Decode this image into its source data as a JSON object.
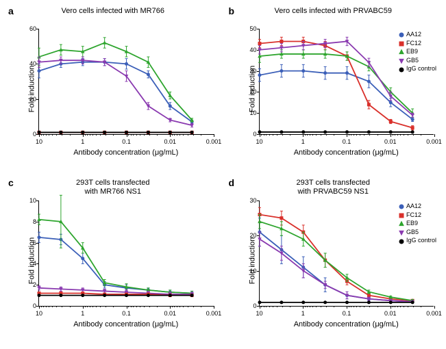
{
  "panels": {
    "a": {
      "label": "a",
      "title": "Vero cells infected with MR766",
      "ylabel": "Fold induction",
      "xlabel": "Antibody concentration (μg/mL)",
      "ylim": [
        0,
        60
      ],
      "ytick_step": 20,
      "xticks": [
        10,
        1,
        0.1,
        0.01,
        0.001
      ],
      "x_range_log": [
        1,
        -3
      ],
      "series": [
        {
          "name": "AA12",
          "color": "#3b5fb8",
          "marker": "circle",
          "x": [
            10,
            3.16,
            1,
            0.316,
            0.1,
            0.0316,
            0.01,
            0.00316
          ],
          "y": [
            36,
            40,
            41,
            41,
            40,
            34,
            16,
            7
          ],
          "err": [
            4,
            2,
            2,
            2,
            3,
            2,
            2,
            1
          ]
        },
        {
          "name": "EB9",
          "color": "#2ea52e",
          "marker": "triangle",
          "x": [
            10,
            3.16,
            1,
            0.316,
            0.1,
            0.0316,
            0.01,
            0.00316
          ],
          "y": [
            44,
            48,
            47,
            52,
            47,
            41,
            22,
            8
          ],
          "err": [
            5,
            3,
            3,
            3,
            3,
            3,
            2,
            1
          ]
        },
        {
          "name": "GB5",
          "color": "#8a3ab0",
          "marker": "invtriangle",
          "x": [
            10,
            3.16,
            1,
            0.316,
            0.1,
            0.0316,
            0.01,
            0.00316
          ],
          "y": [
            41,
            42,
            42,
            41,
            33,
            16,
            8,
            5
          ],
          "err": [
            3,
            2,
            2,
            2,
            3,
            2,
            1,
            1
          ]
        },
        {
          "name": "FC12",
          "color": "#d9302b",
          "marker": "square",
          "x": [
            10,
            3.16,
            1,
            0.316,
            0.1,
            0.0316,
            0.01,
            0.00316
          ],
          "y": [
            1,
            1,
            1,
            1,
            1,
            1,
            1,
            1
          ],
          "err": [
            0.5,
            0.5,
            0.5,
            0.5,
            0.5,
            0.5,
            0.5,
            0.5
          ]
        },
        {
          "name": "IgG control",
          "color": "#000000",
          "marker": "circle",
          "x": [
            10,
            3.16,
            1,
            0.316,
            0.1,
            0.0316,
            0.01,
            0.00316
          ],
          "y": [
            1,
            1,
            1,
            1,
            1,
            1,
            1,
            1
          ],
          "err": [
            0,
            0,
            0,
            0,
            0,
            0,
            0,
            0
          ]
        }
      ],
      "show_legend": false
    },
    "b": {
      "label": "b",
      "title": "Vero cells infected with PRVABC59",
      "ylabel": "Fold induction",
      "xlabel": "Antibody concentration (μg/mL)",
      "ylim": [
        0,
        50
      ],
      "ytick_step": 10,
      "xticks": [
        10,
        1,
        0.1,
        0.01,
        0.001
      ],
      "x_range_log": [
        1,
        -3
      ],
      "series": [
        {
          "name": "AA12",
          "color": "#3b5fb8",
          "marker": "circle",
          "x": [
            10,
            3.16,
            1,
            0.316,
            0.1,
            0.0316,
            0.01,
            0.00316
          ],
          "y": [
            28,
            30,
            30,
            29,
            29,
            25,
            15,
            7
          ],
          "err": [
            3,
            3,
            3,
            3,
            3,
            3,
            2,
            1
          ]
        },
        {
          "name": "FC12",
          "color": "#d9302b",
          "marker": "square",
          "x": [
            10,
            3.16,
            1,
            0.316,
            0.1,
            0.0316,
            0.01,
            0.00316
          ],
          "y": [
            43,
            44,
            44,
            42,
            37,
            14,
            6,
            3
          ],
          "err": [
            2,
            2,
            2,
            2,
            2,
            2,
            1,
            1
          ]
        },
        {
          "name": "EB9",
          "color": "#2ea52e",
          "marker": "triangle",
          "x": [
            10,
            3.16,
            1,
            0.316,
            0.1,
            0.0316,
            0.01,
            0.00316
          ],
          "y": [
            37,
            38,
            38,
            38,
            37,
            32,
            20,
            10
          ],
          "err": [
            3,
            2,
            2,
            2,
            2,
            2,
            2,
            2
          ]
        },
        {
          "name": "GB5",
          "color": "#8a3ab0",
          "marker": "invtriangle",
          "x": [
            10,
            3.16,
            1,
            0.316,
            0.1,
            0.0316,
            0.01,
            0.00316
          ],
          "y": [
            40,
            41,
            42,
            43,
            44,
            34,
            18,
            9
          ],
          "err": [
            2,
            2,
            2,
            2,
            2,
            2,
            2,
            1
          ]
        },
        {
          "name": "IgG control",
          "color": "#000000",
          "marker": "circle",
          "x": [
            10,
            3.16,
            1,
            0.316,
            0.1,
            0.0316,
            0.01,
            0.00316
          ],
          "y": [
            1,
            1,
            1,
            1,
            1,
            1,
            1,
            1
          ],
          "err": [
            0,
            0,
            0,
            0,
            0,
            0,
            0,
            0
          ]
        }
      ],
      "show_legend": true
    },
    "c": {
      "label": "c",
      "title": "293T cells transfected\nwith MR766 NS1",
      "ylabel": "Fold induction",
      "xlabel": "Antibody concentration (μg/mL)",
      "ylim": [
        0,
        10
      ],
      "ytick_step": 2,
      "xticks": [
        10,
        1,
        0.1,
        0.01,
        0.001
      ],
      "x_range_log": [
        1,
        -3
      ],
      "series": [
        {
          "name": "AA12",
          "color": "#3b5fb8",
          "marker": "circle",
          "x": [
            10,
            3.16,
            1,
            0.316,
            0.1,
            0.0316,
            0.01,
            0.00316
          ],
          "y": [
            6.5,
            6.3,
            4.5,
            2,
            1.7,
            1.5,
            1.3,
            1.2
          ],
          "err": [
            0.5,
            0.5,
            0.5,
            0.3,
            0.3,
            0.2,
            0.2,
            0.2
          ]
        },
        {
          "name": "EB9",
          "color": "#2ea52e",
          "marker": "triangle",
          "x": [
            10,
            3.16,
            1,
            0.316,
            0.1,
            0.0316,
            0.01,
            0.00316
          ],
          "y": [
            8.2,
            8.0,
            5.5,
            2.2,
            1.8,
            1.5,
            1.3,
            1.2
          ],
          "err": [
            0.5,
            2.5,
            0.5,
            0.3,
            0.3,
            0.2,
            0.2,
            0.2
          ]
        },
        {
          "name": "GB5",
          "color": "#8a3ab0",
          "marker": "invtriangle",
          "x": [
            10,
            3.16,
            1,
            0.316,
            0.1,
            0.0316,
            0.01,
            0.00316
          ],
          "y": [
            1.7,
            1.6,
            1.5,
            1.4,
            1.3,
            1.2,
            1.1,
            1.1
          ],
          "err": [
            0.2,
            0.2,
            0.2,
            0.2,
            0.2,
            0.2,
            0.2,
            0.2
          ]
        },
        {
          "name": "FC12",
          "color": "#d9302b",
          "marker": "square",
          "x": [
            10,
            3.16,
            1,
            0.316,
            0.1,
            0.0316,
            0.01,
            0.00316
          ],
          "y": [
            1.2,
            1.2,
            1.2,
            1.1,
            1.1,
            1.1,
            1.0,
            1.0
          ],
          "err": [
            0.1,
            0.1,
            0.1,
            0.1,
            0.1,
            0.1,
            0.1,
            0.1
          ]
        },
        {
          "name": "IgG control",
          "color": "#000000",
          "marker": "circle",
          "x": [
            10,
            3.16,
            1,
            0.316,
            0.1,
            0.0316,
            0.01,
            0.00316
          ],
          "y": [
            1,
            1,
            1,
            1,
            1,
            1,
            1,
            1
          ],
          "err": [
            0,
            0,
            0,
            0,
            0,
            0,
            0,
            0
          ]
        }
      ],
      "show_legend": false
    },
    "d": {
      "label": "d",
      "title": "293T cells transfected\nwith PRVABC59 NS1",
      "ylabel": "Fold induction",
      "xlabel": "Antibody concentration (μg/mL)",
      "ylim": [
        0,
        30
      ],
      "ytick_step": 10,
      "xticks": [
        10,
        1,
        0.1,
        0.01,
        0.001
      ],
      "x_range_log": [
        1,
        -3
      ],
      "series": [
        {
          "name": "AA12",
          "color": "#3b5fb8",
          "marker": "circle",
          "x": [
            10,
            3.16,
            1,
            0.316,
            0.1,
            0.0316,
            0.01,
            0.00316
          ],
          "y": [
            21,
            16,
            11,
            6,
            3,
            2,
            1.5,
            1.2
          ],
          "err": [
            4,
            4,
            3,
            2,
            1,
            0.5,
            0.3,
            0.3
          ]
        },
        {
          "name": "FC12",
          "color": "#d9302b",
          "marker": "square",
          "x": [
            10,
            3.16,
            1,
            0.316,
            0.1,
            0.0316,
            0.01,
            0.00316
          ],
          "y": [
            26,
            25,
            21,
            13,
            7,
            3,
            2,
            1.5
          ],
          "err": [
            2,
            2,
            2,
            2,
            1,
            0.5,
            0.3,
            0.3
          ]
        },
        {
          "name": "EB9",
          "color": "#2ea52e",
          "marker": "triangle",
          "x": [
            10,
            3.16,
            1,
            0.316,
            0.1,
            0.0316,
            0.01,
            0.00316
          ],
          "y": [
            24,
            22,
            19,
            13,
            8,
            4,
            2.5,
            1.5
          ],
          "err": [
            2,
            2,
            2,
            2,
            1,
            0.5,
            0.3,
            0.3
          ]
        },
        {
          "name": "GB5",
          "color": "#8a3ab0",
          "marker": "invtriangle",
          "x": [
            10,
            3.16,
            1,
            0.316,
            0.1,
            0.0316,
            0.01,
            0.00316
          ],
          "y": [
            19,
            15,
            10,
            6,
            3,
            2,
            1.5,
            1.2
          ],
          "err": [
            2,
            2,
            2,
            1,
            1,
            0.5,
            0.3,
            0.3
          ]
        },
        {
          "name": "IgG control",
          "color": "#000000",
          "marker": "circle",
          "x": [
            10,
            3.16,
            1,
            0.316,
            0.1,
            0.0316,
            0.01,
            0.00316
          ],
          "y": [
            1,
            1,
            1,
            1,
            1,
            1,
            1,
            1
          ],
          "err": [
            0,
            0,
            0,
            0,
            0,
            0,
            0,
            0
          ]
        }
      ],
      "show_legend": true
    }
  },
  "legend_order": [
    "AA12",
    "FC12",
    "EB9",
    "GB5",
    "IgG control"
  ],
  "legend_colors": {
    "AA12": "#3b5fb8",
    "FC12": "#d9302b",
    "EB9": "#2ea52e",
    "GB5": "#8a3ab0",
    "IgG control": "#000000"
  },
  "legend_markers": {
    "AA12": "circle",
    "FC12": "square",
    "EB9": "triangle",
    "GB5": "invtriangle",
    "IgG control": "circle"
  },
  "styling": {
    "background_color": "#ffffff",
    "axis_color": "#000000",
    "axis_width": 1.5,
    "tick_fontsize": 9,
    "label_fontsize": 11,
    "title_fontsize": 11,
    "panel_label_fontsize": 14,
    "panel_label_weight": "bold",
    "marker_size": 5,
    "line_width": 1.8,
    "error_cap_width": 4
  }
}
